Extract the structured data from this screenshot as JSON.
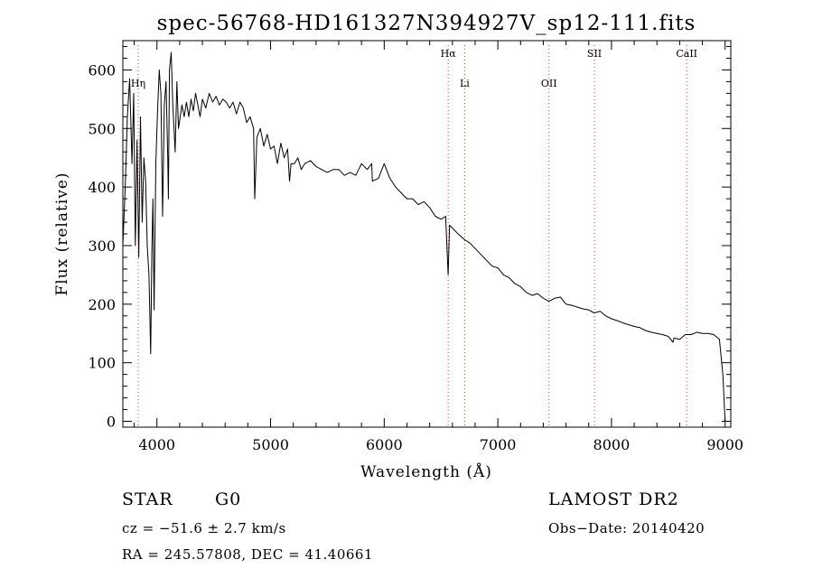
{
  "chart_data": {
    "type": "line",
    "title": "spec-56768-HD161327N394927V_sp12-111.fits",
    "xlabel": "Wavelength (Å)",
    "ylabel": "Flux (relative)",
    "xlim": [
      3700,
      9050
    ],
    "ylim": [
      -10,
      650
    ],
    "xticks": [
      4000,
      5000,
      6000,
      7000,
      8000,
      9000
    ],
    "yticks": [
      0,
      100,
      200,
      300,
      400,
      500,
      600
    ],
    "grid": false,
    "spectral_lines": [
      {
        "name": "Hη",
        "x": 3835,
        "label_row": 1
      },
      {
        "name": "Hα",
        "x": 6563,
        "label_row": 0
      },
      {
        "name": "Li",
        "x": 6708,
        "label_row": 1
      },
      {
        "name": "OII",
        "x": 7450,
        "label_row": 1
      },
      {
        "name": "SII",
        "x": 7850,
        "label_row": 0
      },
      {
        "name": "CaII",
        "x": 8662,
        "label_row": 0
      }
    ],
    "series": [
      {
        "x": [
          3700,
          3720,
          3740,
          3760,
          3780,
          3795,
          3810,
          3825,
          3840,
          3855,
          3870,
          3885,
          3900,
          3915,
          3930,
          3945,
          3955,
          3965,
          3975,
          3990,
          4005,
          4020,
          4035,
          4050,
          4065,
          4080,
          4095,
          4101,
          4110,
          4125,
          4140,
          4160,
          4175,
          4190,
          4205,
          4220,
          4240,
          4260,
          4280,
          4300,
          4320,
          4340,
          4360,
          4380,
          4400,
          4430,
          4460,
          4490,
          4520,
          4550,
          4580,
          4610,
          4640,
          4670,
          4700,
          4730,
          4760,
          4790,
          4820,
          4850,
          4861,
          4880,
          4910,
          4940,
          4970,
          5000,
          5030,
          5060,
          5090,
          5120,
          5150,
          5167,
          5180,
          5210,
          5240,
          5270,
          5300,
          5350,
          5400,
          5450,
          5500,
          5550,
          5600,
          5650,
          5700,
          5750,
          5800,
          5850,
          5890,
          5896,
          5950,
          6000,
          6050,
          6100,
          6150,
          6200,
          6250,
          6300,
          6350,
          6400,
          6450,
          6500,
          6540,
          6563,
          6575,
          6600,
          6650,
          6708,
          6750,
          6800,
          6850,
          6900,
          6950,
          7000,
          7050,
          7100,
          7150,
          7200,
          7250,
          7300,
          7350,
          7400,
          7450,
          7500,
          7550,
          7600,
          7650,
          7700,
          7750,
          7800,
          7850,
          7900,
          7950,
          8000,
          8050,
          8100,
          8150,
          8200,
          8250,
          8300,
          8350,
          8400,
          8450,
          8500,
          8542,
          8550,
          8600,
          8650,
          8700,
          8750,
          8800,
          8850,
          8900,
          8950,
          8980,
          9000
        ],
        "y": [
          300,
          395,
          520,
          585,
          440,
          560,
          300,
          480,
          280,
          520,
          340,
          450,
          410,
          300,
          250,
          115,
          290,
          380,
          190,
          440,
          530,
          600,
          560,
          350,
          540,
          580,
          450,
          380,
          600,
          630,
          540,
          460,
          580,
          500,
          520,
          540,
          520,
          545,
          520,
          550,
          530,
          560,
          540,
          520,
          550,
          535,
          560,
          545,
          555,
          540,
          550,
          545,
          535,
          545,
          525,
          545,
          535,
          510,
          520,
          500,
          380,
          485,
          500,
          470,
          490,
          465,
          470,
          440,
          475,
          450,
          465,
          410,
          440,
          440,
          450,
          430,
          440,
          445,
          435,
          430,
          425,
          430,
          430,
          420,
          425,
          420,
          440,
          430,
          440,
          410,
          415,
          440,
          415,
          400,
          390,
          380,
          380,
          370,
          375,
          365,
          350,
          345,
          350,
          250,
          335,
          330,
          320,
          310,
          305,
          295,
          285,
          275,
          265,
          262,
          250,
          245,
          235,
          230,
          220,
          215,
          218,
          210,
          205,
          210,
          212,
          200,
          198,
          195,
          192,
          190,
          185,
          188,
          180,
          175,
          172,
          168,
          165,
          162,
          160,
          155,
          152,
          150,
          148,
          145,
          135,
          142,
          140,
          148,
          148,
          152,
          150,
          150,
          148,
          140,
          80,
          0
        ]
      }
    ]
  },
  "footer": {
    "object_type": "STAR",
    "subclass": "G0",
    "survey": "LAMOST DR2",
    "redshift": "cz = −51.6 ± 2.7 km/s",
    "obs_date": "Obs−Date: 20140420",
    "coords": "RA = 245.57808, DEC =  41.40661"
  }
}
